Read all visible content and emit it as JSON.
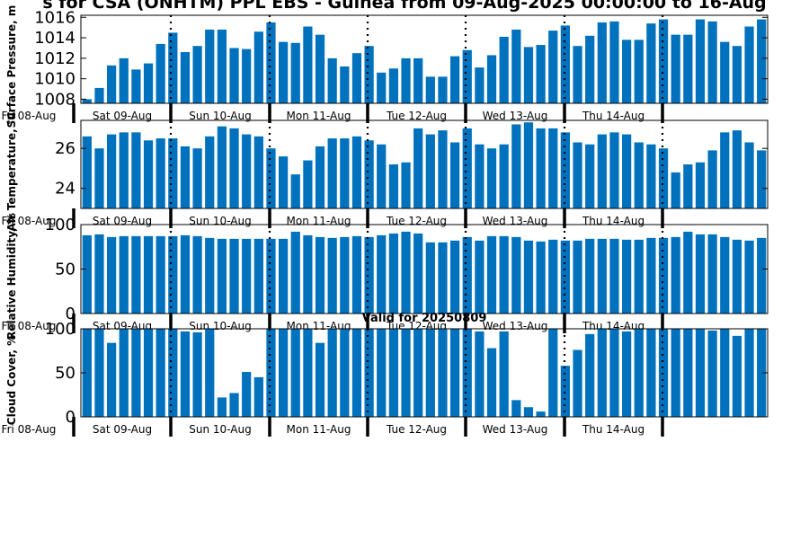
{
  "page": {
    "title": "s for CSA (ONHTM) PPL EBS  - Guinea from 09-Aug-2025 00:00:00 to 16-Aug",
    "valid_text": "Valid for 20250809"
  },
  "colors": {
    "bar": "#0072bd",
    "axis": "#000000",
    "background": "#ffffff"
  },
  "chart_data": [
    {
      "type": "bar",
      "ylabel": "Surface Pressure, m",
      "ylim": [
        1007.6,
        1016.2
      ],
      "yticks": [
        1008,
        1010,
        1012,
        1014,
        1016
      ],
      "x_start_label": "Fri 08-Aug",
      "days": [
        "Sat 09-Aug",
        "Sun 10-Aug",
        "Mon 11-Aug",
        "Tue 12-Aug",
        "Wed 13-Aug",
        "Thu 14-Aug"
      ],
      "interval_hours": 3,
      "values": [
        1008.0,
        1009.1,
        1011.3,
        1012.0,
        1010.9,
        1011.5,
        1013.4,
        1014.5,
        1012.6,
        1013.2,
        1014.8,
        1014.8,
        1013.0,
        1012.9,
        1014.6,
        1015.5,
        1013.6,
        1013.5,
        1015.1,
        1014.3,
        1012.0,
        1011.2,
        1012.5,
        1013.2,
        1010.6,
        1011.0,
        1012.0,
        1012.0,
        1010.2,
        1010.2,
        1012.2,
        1012.8,
        1011.1,
        1012.3,
        1014.1,
        1014.8,
        1013.1,
        1013.3,
        1014.7,
        1015.2,
        1013.2,
        1014.2,
        1015.5,
        1015.6,
        1013.8,
        1013.8,
        1015.4,
        1015.8,
        1014.3,
        1014.3,
        1015.8,
        1015.6,
        1013.6,
        1013.2,
        1015.1,
        1015.8
      ]
    },
    {
      "type": "bar",
      "ylabel": "Air Temperature, °C",
      "ylim": [
        23.0,
        27.4
      ],
      "yticks": [
        24,
        26
      ],
      "x_start_label": "Fri 08-Aug",
      "days": [
        "Sat 09-Aug",
        "Sun 10-Aug",
        "Mon 11-Aug",
        "Tue 12-Aug",
        "Wed 13-Aug",
        "Thu 14-Aug"
      ],
      "interval_hours": 3,
      "values": [
        26.6,
        26.0,
        26.7,
        26.8,
        26.8,
        26.4,
        26.5,
        26.5,
        26.1,
        26.0,
        26.6,
        27.1,
        27.0,
        26.7,
        26.6,
        26.0,
        25.6,
        24.7,
        25.4,
        26.1,
        26.5,
        26.5,
        26.6,
        26.4,
        26.2,
        25.2,
        25.3,
        27.0,
        26.7,
        26.9,
        26.3,
        27.0,
        26.2,
        26.0,
        26.2,
        27.2,
        27.3,
        27.0,
        27.0,
        26.8,
        26.3,
        26.2,
        26.7,
        26.8,
        26.7,
        26.3,
        26.2,
        26.0,
        24.8,
        25.2,
        25.3,
        25.9,
        26.8,
        26.9,
        26.3,
        25.9
      ]
    },
    {
      "type": "bar",
      "ylabel": "Relative Humidity, %",
      "ylim": [
        0,
        100
      ],
      "yticks": [
        0,
        50,
        100
      ],
      "x_start_label": "Fri 08-Aug",
      "days": [
        "Sat 09-Aug",
        "Sun 10-Aug",
        "Mon 11-Aug",
        "Tue 12-Aug",
        "Wed 13-Aug",
        "Thu 14-Aug"
      ],
      "interval_hours": 3,
      "values": [
        88,
        89,
        86,
        87,
        87,
        87,
        87,
        87,
        88,
        87,
        85,
        84,
        84,
        84,
        84,
        84,
        84,
        92,
        88,
        86,
        85,
        86,
        87,
        86,
        88,
        90,
        92,
        90,
        80,
        80,
        82,
        86,
        82,
        87,
        87,
        86,
        82,
        81,
        83,
        82,
        82,
        84,
        84,
        84,
        83,
        83,
        85,
        85,
        86,
        92,
        89,
        89,
        86,
        83,
        82,
        85
      ]
    },
    {
      "type": "bar",
      "title": "Valid for 20250809",
      "ylabel": "Cloud Cover, %",
      "ylim": [
        0,
        100
      ],
      "yticks": [
        0,
        50,
        100
      ],
      "x_start_label": "Fri 08-Aug",
      "days": [
        "Sat 09-Aug",
        "Sun 10-Aug",
        "Mon 11-Aug",
        "Tue 12-Aug",
        "Wed 13-Aug",
        "Thu 14-Aug"
      ],
      "interval_hours": 3,
      "values": [
        100,
        100,
        84,
        100,
        100,
        100,
        100,
        100,
        97,
        96,
        100,
        22,
        27,
        51,
        45,
        100,
        100,
        100,
        100,
        84,
        100,
        100,
        100,
        100,
        100,
        100,
        100,
        100,
        100,
        100,
        100,
        100,
        97,
        78,
        97,
        19,
        11,
        6,
        100,
        58,
        76,
        94,
        100,
        100,
        97,
        100,
        100,
        100,
        100,
        100,
        100,
        98,
        100,
        92,
        100,
        100
      ]
    }
  ]
}
